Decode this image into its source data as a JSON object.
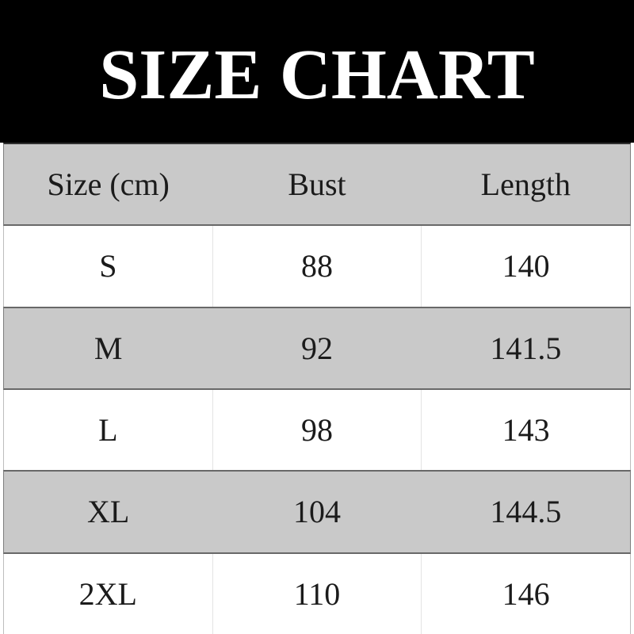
{
  "banner": {
    "title": "SIZE CHART"
  },
  "size_chart": {
    "columns": [
      "Size (cm)",
      "Bust",
      "Length"
    ],
    "rows": [
      {
        "size": "S",
        "bust": "88",
        "length": "140"
      },
      {
        "size": "M",
        "bust": "92",
        "length": "141.5"
      },
      {
        "size": "L",
        "bust": "98",
        "length": "143"
      },
      {
        "size": "XL",
        "bust": "104",
        "length": "144.5"
      },
      {
        "size": "2XL",
        "bust": "110",
        "length": "146"
      }
    ]
  },
  "colors": {
    "banner_bg": "#000000",
    "banner_text": "#ffffff",
    "row_alt_bg": "#c9c9c9",
    "row_border_dark": "#686868",
    "col_divider": "#e3e3e3",
    "table_text": "#1b1b1b"
  },
  "chart_data": {
    "type": "table",
    "title": "SIZE CHART",
    "columns": [
      "Size (cm)",
      "Bust",
      "Length"
    ],
    "rows": [
      [
        "S",
        88,
        140
      ],
      [
        "M",
        92,
        141.5
      ],
      [
        "L",
        98,
        143
      ],
      [
        "XL",
        104,
        144.5
      ],
      [
        "2XL",
        110,
        146
      ]
    ],
    "layout_hints": {
      "header_bg": "#c9c9c9",
      "alternating_rows": true,
      "units": "cm"
    }
  }
}
